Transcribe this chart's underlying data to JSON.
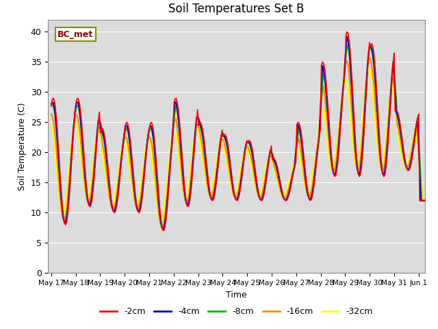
{
  "title": "Soil Temperatures Set B",
  "xlabel": "Time",
  "ylabel": "Soil Temperature (C)",
  "ylim": [
    0,
    42
  ],
  "yticks": [
    0,
    5,
    10,
    15,
    20,
    25,
    30,
    35,
    40
  ],
  "annotation_text": "BC_met",
  "bg_color": "#dcdcdc",
  "line_colors": {
    "-2cm": "#ff0000",
    "-4cm": "#0000cc",
    "-8cm": "#00bb00",
    "-16cm": "#ff8800",
    "-32cm": "#ffff00"
  },
  "xtick_labels": [
    "May 17",
    "May 18",
    "May 19",
    "May 20",
    "May 21",
    "May 22",
    "May 23",
    "May 24",
    "May 25",
    "May 26",
    "May 27",
    "May 28",
    "May 29",
    "May 30",
    "May 31",
    "Jun 1"
  ],
  "legend_labels": [
    "-2cm",
    "-4cm",
    "-8cm",
    "-16cm",
    "-32cm"
  ]
}
